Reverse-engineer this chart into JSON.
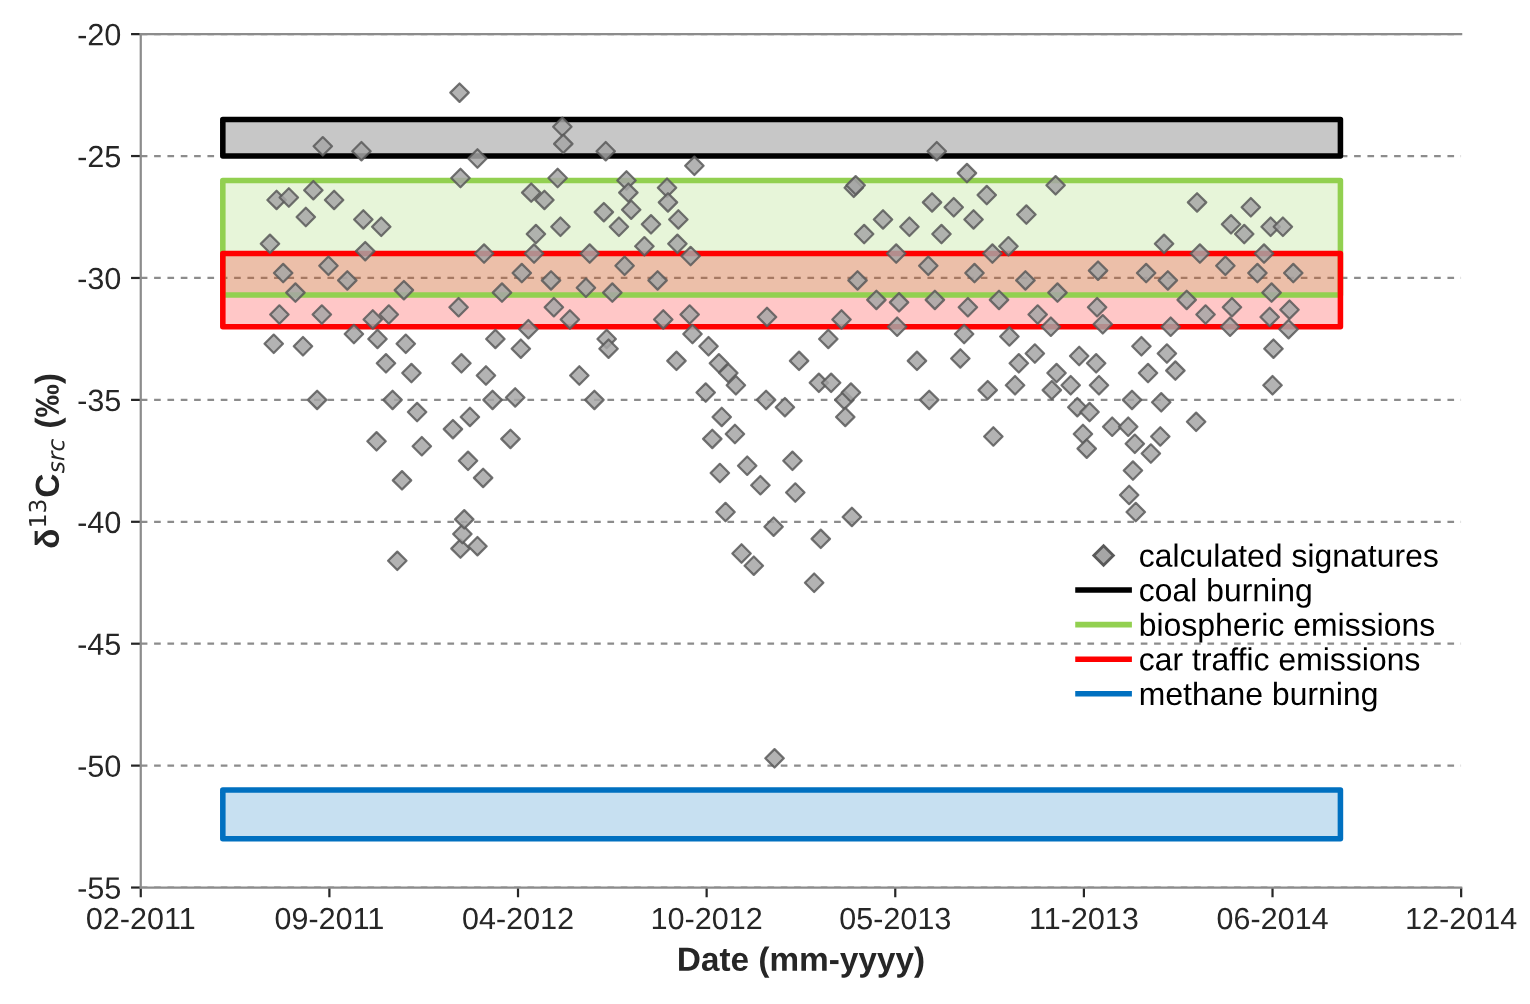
{
  "chart_data": {
    "type": "scatter",
    "xlabel": "Date (mm-yyyy)",
    "ylabel": "δ$^{13}$C$_{src}$ (‰)",
    "xlim": [
      "2011-02-28",
      "2014-12-29"
    ],
    "xticks": [
      {
        "value": "2011-02-28",
        "label": "02-2011"
      },
      {
        "value": "2011-09-16",
        "label": "09-2011"
      },
      {
        "value": "2012-04-03",
        "label": "04-2012"
      },
      {
        "value": "2012-10-20",
        "label": "10-2012"
      },
      {
        "value": "2013-05-08",
        "label": "05-2013"
      },
      {
        "value": "2013-11-24",
        "label": "11-2013"
      },
      {
        "value": "2014-06-12",
        "label": "06-2014"
      },
      {
        "value": "2014-12-29",
        "label": "12-2014"
      }
    ],
    "ylim": [
      -55,
      -20
    ],
    "yticks": [
      -55,
      -50,
      -45,
      -40,
      -35,
      -30,
      -25,
      -20
    ],
    "grid": "y",
    "legend": "bottom right",
    "marker": "diamond",
    "series": [
      {
        "name": "calculated signatures",
        "color": "#a6a6a6",
        "x": [
          "2012-02-01",
          "2011-09-09",
          "2011-10-20",
          "2012-05-20",
          "2012-05-21",
          "2012-07-05",
          "2012-10-07",
          "2012-02-20",
          "2012-02-02",
          "2012-05-15",
          "2012-07-27",
          "2012-09-08",
          "2011-07-19",
          "2011-08-19",
          "2011-09-03",
          "2011-11-27",
          "2011-12-02",
          "2011-11-05",
          "2011-12-23",
          "2012-02-02",
          "2012-02-04",
          "2012-02-06",
          "2012-02-20",
          "2012-02-26",
          "2012-02-10",
          "2012-01-25",
          "2012-03-31",
          "2012-03-26",
          "2012-03-07",
          "2012-06-23",
          "2012-06-07",
          "2012-11-09",
          "2012-11-26",
          "2012-12-09",
          "2012-12-30",
          "2013-01-22",
          "2013-02-18",
          "2013-02-11",
          "2012-11-03",
          "2012-10-26",
          "2012-12-02",
          "2012-12-16",
          "2013-01-26",
          "2013-02-16",
          "2013-03-23",
          "2012-09-18",
          "2012-10-19",
          "2012-11-05",
          "2012-11-19",
          "2012-12-22",
          "2013-01-11",
          "2011-07-22",
          "2011-08-04",
          "2011-08-30",
          "2011-09-21",
          "2011-08-22",
          "2011-07-15",
          "2011-07-29",
          "2011-08-11",
          "2011-07-25",
          "2011-09-08",
          "2011-09-15",
          "2011-10-22",
          "2011-11-10",
          "2011-10-24",
          "2011-10-05",
          "2011-11-01",
          "2011-11-18",
          "2011-12-04",
          "2011-10-12",
          "2011-11-06",
          "2011-11-15",
          "2011-11-22",
          "2011-12-12",
          "2011-12-06",
          "2011-12-18",
          "2012-02-27",
          "2012-01-31",
          "2012-02-03",
          "2012-02-12",
          "2012-02-29",
          "2012-03-10",
          "2012-03-17",
          "2012-04-17",
          "2012-05-01",
          "2012-04-22",
          "2012-04-20",
          "2012-04-07",
          "2012-05-08",
          "2012-05-18",
          "2012-05-11",
          "2012-04-14",
          "2012-04-06",
          "2012-05-28",
          "2012-06-14",
          "2012-06-18",
          "2012-07-03",
          "2012-07-19",
          "2012-08-01",
          "2012-07-29",
          "2012-08-22",
          "2012-08-15",
          "2012-07-25",
          "2012-07-12",
          "2012-07-06",
          "2012-07-08",
          "2012-08-29",
          "2012-09-19",
          "2012-09-20",
          "2012-09-09",
          "2012-09-04",
          "2012-10-02",
          "2012-10-05",
          "2012-10-03",
          "2012-10-22",
          "2012-11-02",
          "2012-11-12",
          "2012-11-20",
          "2012-12-23",
          "2013-02-26",
          "2013-03-25",
          "2013-03-15",
          "2013-06-21",
          "2013-07-23",
          "2013-03-27",
          "2013-10-25",
          "2014-03-24",
          "2014-05-20",
          "2013-08-13",
          "2013-09-24",
          "2013-04-05",
          "2013-04-25",
          "2013-06-16",
          "2013-07-09",
          "2013-07-30",
          "2013-06-26",
          "2013-05-23",
          "2013-09-05",
          "2013-05-09",
          "2013-03-29",
          "2013-04-18",
          "2013-06-12",
          "2013-07-31",
          "2013-08-19",
          "2013-09-23",
          "2013-05-12",
          "2013-06-19",
          "2013-07-24",
          "2013-08-26",
          "2013-03-12",
          "2013-05-10",
          "2013-05-31",
          "2013-07-16",
          "2013-07-20",
          "2013-06-13",
          "2013-08-20",
          "2013-08-14",
          "2013-09-12",
          "2013-09-06",
          "2013-09-16",
          "2013-10-03",
          "2013-10-06",
          "2013-10-20",
          "2013-10-26",
          "2013-10-21",
          "2013-11-10",
          "2013-11-19",
          "2013-11-17",
          "2013-11-23",
          "2013-11-30",
          "2013-12-07",
          "2013-12-10",
          "2013-12-24",
          "2013-11-27",
          "2013-12-08",
          "2013-12-14",
          "2014-01-14",
          "2014-01-24",
          "2014-01-31",
          "2014-01-10",
          "2014-01-17",
          "2014-01-15",
          "2014-01-11",
          "2014-01-18",
          "2014-02-03",
          "2014-02-13",
          "2014-02-14",
          "2014-02-20",
          "2014-03-01",
          "2014-03-23",
          "2014-02-24",
          "2014-02-21",
          "2014-03-13",
          "2014-04-02",
          "2014-04-30",
          "2014-02-17",
          "2014-03-27",
          "2014-04-29",
          "2014-05-13",
          "2014-06-10",
          "2014-06-23",
          "2014-06-03",
          "2014-04-23",
          "2014-05-27",
          "2014-07-04",
          "2014-06-11",
          "2014-06-30",
          "2014-06-09",
          "2014-06-13",
          "2014-06-29",
          "2014-06-12",
          "2014-04-28",
          "2014-01-29",
          "2013-12-09",
          "2013-10-27",
          "2013-01-19",
          "2013-03-01",
          "2013-03-16",
          "2013-03-22",
          "2012-12-31"
        ],
        "values": [
          -22.4,
          -24.6,
          -24.8,
          -23.8,
          -24.5,
          -24.8,
          -25.4,
          -25.1,
          -25.9,
          -25.9,
          -26.0,
          -26.3,
          -32.7,
          -32.8,
          -35.0,
          -41.6,
          -38.3,
          -36.7,
          -36.9,
          -41.1,
          -40.5,
          -39.9,
          -41.0,
          -38.2,
          -37.5,
          -36.2,
          -34.9,
          -36.6,
          -35.0,
          -35.0,
          -34.0,
          -39.6,
          -41.3,
          -41.8,
          -40.2,
          -38.8,
          -40.7,
          -42.5,
          -38.0,
          -36.6,
          -37.7,
          -38.5,
          -33.4,
          -34.3,
          -39.8,
          -33.4,
          -34.7,
          -35.7,
          -36.4,
          -35.0,
          -35.3,
          -26.8,
          -26.7,
          -26.4,
          -26.8,
          -27.5,
          -28.6,
          -29.8,
          -30.6,
          -31.5,
          -31.5,
          -29.5,
          -27.6,
          -27.9,
          -28.9,
          -30.1,
          -31.7,
          -31.5,
          -30.5,
          -32.3,
          -32.5,
          -33.5,
          -35.0,
          -33.9,
          -32.7,
          -35.5,
          -29.0,
          -31.2,
          -33.5,
          -35.7,
          -34.0,
          -32.5,
          -30.6,
          -26.5,
          -26.8,
          -28.2,
          -29.0,
          -29.8,
          -30.1,
          -27.9,
          -31.2,
          -32.1,
          -32.9,
          -31.7,
          -30.4,
          -29.0,
          -27.3,
          -27.9,
          -27.2,
          -26.5,
          -27.8,
          -28.7,
          -29.5,
          -30.6,
          -32.5,
          -32.9,
          -30.1,
          -28.6,
          -27.6,
          -26.9,
          -31.7,
          -31.5,
          -32.3,
          -29.1,
          -32.8,
          -33.5,
          -33.9,
          -34.4,
          -31.6,
          -32.5,
          -26.3,
          -35.0,
          -24.8,
          -25.7,
          -26.2,
          -26.2,
          -26.9,
          -27.1,
          -26.6,
          -27.4,
          -28.2,
          -27.6,
          -26.9,
          -27.1,
          -27.6,
          -28.2,
          -27.9,
          -28.7,
          -29.0,
          -30.1,
          -30.9,
          -29.5,
          -29.8,
          -29.0,
          -30.1,
          -31.0,
          -30.9,
          -31.2,
          -30.9,
          -31.7,
          -32.0,
          -33.4,
          -33.3,
          -32.3,
          -35.0,
          -36.5,
          -34.6,
          -34.4,
          -32.4,
          -33.5,
          -33.1,
          -31.5,
          -32.0,
          -33.9,
          -34.6,
          -34.4,
          -33.2,
          -35.3,
          -36.4,
          -35.5,
          -33.5,
          -34.4,
          -36.1,
          -37.0,
          -31.2,
          -31.9,
          -35.0,
          -32.8,
          -33.9,
          -36.1,
          -36.8,
          -37.9,
          -38.9,
          -39.6,
          -37.2,
          -36.5,
          -35.1,
          -33.1,
          -33.8,
          -35.9,
          -32.0,
          -30.1,
          -30.9,
          -31.5,
          -31.2,
          -28.6,
          -29.0,
          -27.8,
          -28.2,
          -27.9,
          -27.9,
          -29.0,
          -29.5,
          -29.8,
          -29.8,
          -30.6,
          -31.3,
          -31.6,
          -32.9,
          -32.1,
          -34.4,
          -32.0,
          -29.8,
          -29.7,
          -30.6,
          -37.5,
          -34.3,
          -35.7,
          -34.7,
          -49.7
        ]
      }
    ],
    "bands": [
      {
        "axis": "y",
        "from": -25,
        "to": -23.5,
        "label": "coal burning",
        "color": "#000000"
      },
      {
        "axis": "y",
        "from": -30.7,
        "to": -26,
        "label": "biospheric emissions",
        "color": "#92d050"
      },
      {
        "axis": "y",
        "from": -32,
        "to": -29,
        "label": "car traffic emissions",
        "color": "#ff0000"
      },
      {
        "axis": "y",
        "from": -53,
        "to": -51,
        "label": "methane burning",
        "color": "#0070c0"
      }
    ]
  }
}
